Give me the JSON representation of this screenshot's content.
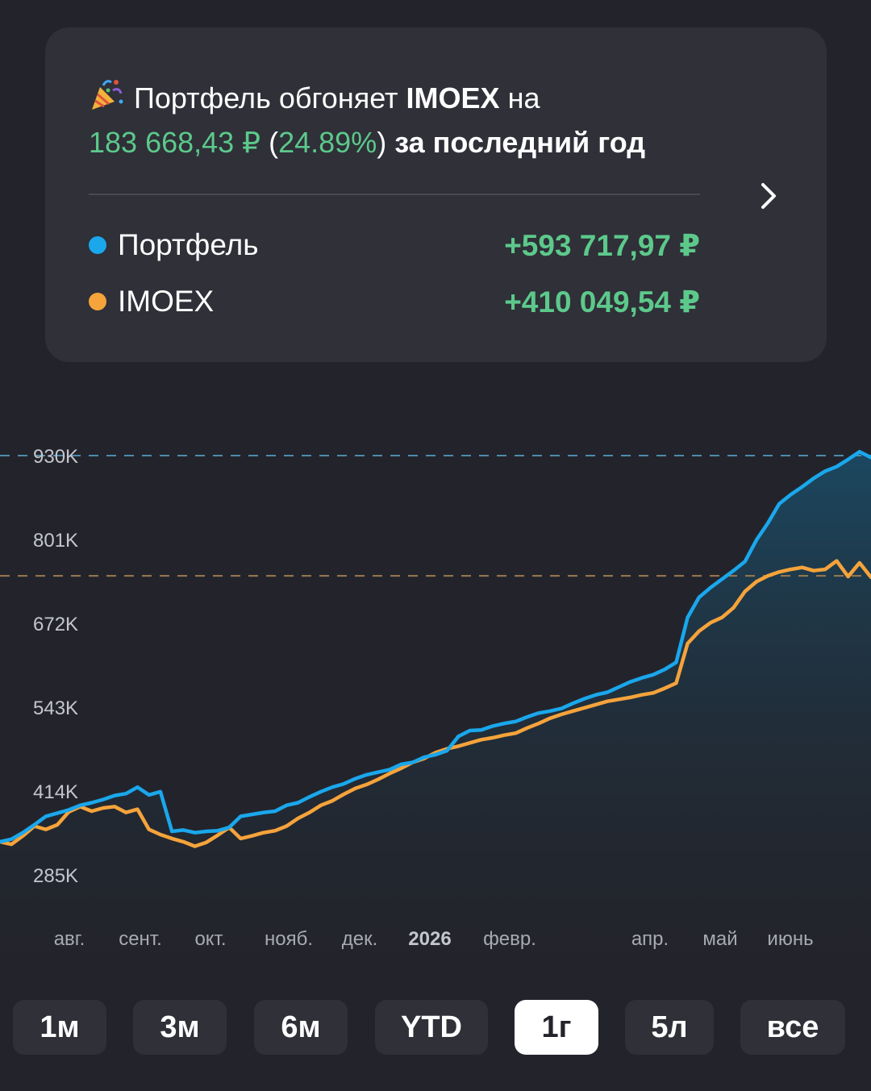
{
  "summary": {
    "icon": "party-popper-icon",
    "line1_prefix": "Портфель обгоняет",
    "benchmark": "IMOEX",
    "line1_suffix": "на",
    "diff_amount": "183 668,43 ₽",
    "diff_percent": "24.89%",
    "period_text": "за последний год"
  },
  "legend": [
    {
      "name": "Портфель",
      "value": "+593 717,97 ₽",
      "color": "#1aa7ec"
    },
    {
      "name": "IMOEX",
      "value": "+410 049,54 ₽",
      "color": "#f5a33b"
    }
  ],
  "chart_data": {
    "type": "line",
    "y_ticks": [
      "930K",
      "801K",
      "672K",
      "543K",
      "414K",
      "285K"
    ],
    "x_ticks": [
      "авг.",
      "сент.",
      "окт.",
      "нояб.",
      "дек.",
      "2026",
      "февр.",
      "апр.",
      "май",
      "июнь"
    ],
    "x_bold_tick": "2026",
    "ylim": [
      285000,
      930000
    ],
    "reference_lines": [
      {
        "series": "Портфель",
        "value": 930000,
        "color": "#4c8cab"
      },
      {
        "series": "IMOEX",
        "value": 745000,
        "color": "#9a7a50"
      }
    ],
    "series": [
      {
        "name": "Портфель",
        "color": "#1aa7ec",
        "values": [
          336000,
          340000,
          350000,
          362000,
          375000,
          380000,
          385000,
          392000,
          396000,
          401000,
          407000,
          410000,
          420000,
          408000,
          413000,
          352000,
          354000,
          350000,
          352000,
          353000,
          358000,
          375000,
          378000,
          381000,
          383000,
          392000,
          396000,
          405000,
          413000,
          420000,
          425000,
          433000,
          439000,
          443000,
          447000,
          455000,
          458000,
          466000,
          470000,
          476000,
          498000,
          507000,
          508000,
          514000,
          518000,
          521000,
          528000,
          534000,
          537000,
          541000,
          549000,
          556000,
          562000,
          566000,
          574000,
          582000,
          588000,
          593000,
          601000,
          612000,
          681000,
          712000,
          727000,
          740000,
          753000,
          767000,
          800000,
          826000,
          856000,
          870000,
          882000,
          895000,
          906000,
          913000,
          924000,
          936000,
          927000
        ]
      },
      {
        "name": "IMOEX",
        "color": "#f5a33b",
        "values": [
          336000,
          332000,
          345000,
          360000,
          355000,
          362000,
          382000,
          390000,
          383000,
          388000,
          390000,
          381000,
          386000,
          355000,
          347000,
          341000,
          336000,
          329000,
          335000,
          346000,
          358000,
          341000,
          345000,
          350000,
          353000,
          360000,
          372000,
          381000,
          392000,
          399000,
          409000,
          418000,
          424000,
          432000,
          441000,
          449000,
          458000,
          464000,
          473000,
          479000,
          483000,
          488000,
          493000,
          496000,
          500000,
          503000,
          511000,
          518000,
          526000,
          532000,
          537000,
          542000,
          547000,
          552000,
          555000,
          558000,
          562000,
          565000,
          572000,
          580000,
          641000,
          660000,
          673000,
          681000,
          696000,
          721000,
          736000,
          745000,
          751000,
          755000,
          758000,
          753000,
          755000,
          768000,
          744000,
          765000,
          743000
        ]
      }
    ]
  },
  "periods": [
    {
      "label": "1м",
      "active": false
    },
    {
      "label": "3м",
      "active": false
    },
    {
      "label": "6м",
      "active": false
    },
    {
      "label": "YTD",
      "active": false
    },
    {
      "label": "1г",
      "active": true
    },
    {
      "label": "5л",
      "active": false
    },
    {
      "label": "все",
      "active": false
    }
  ]
}
